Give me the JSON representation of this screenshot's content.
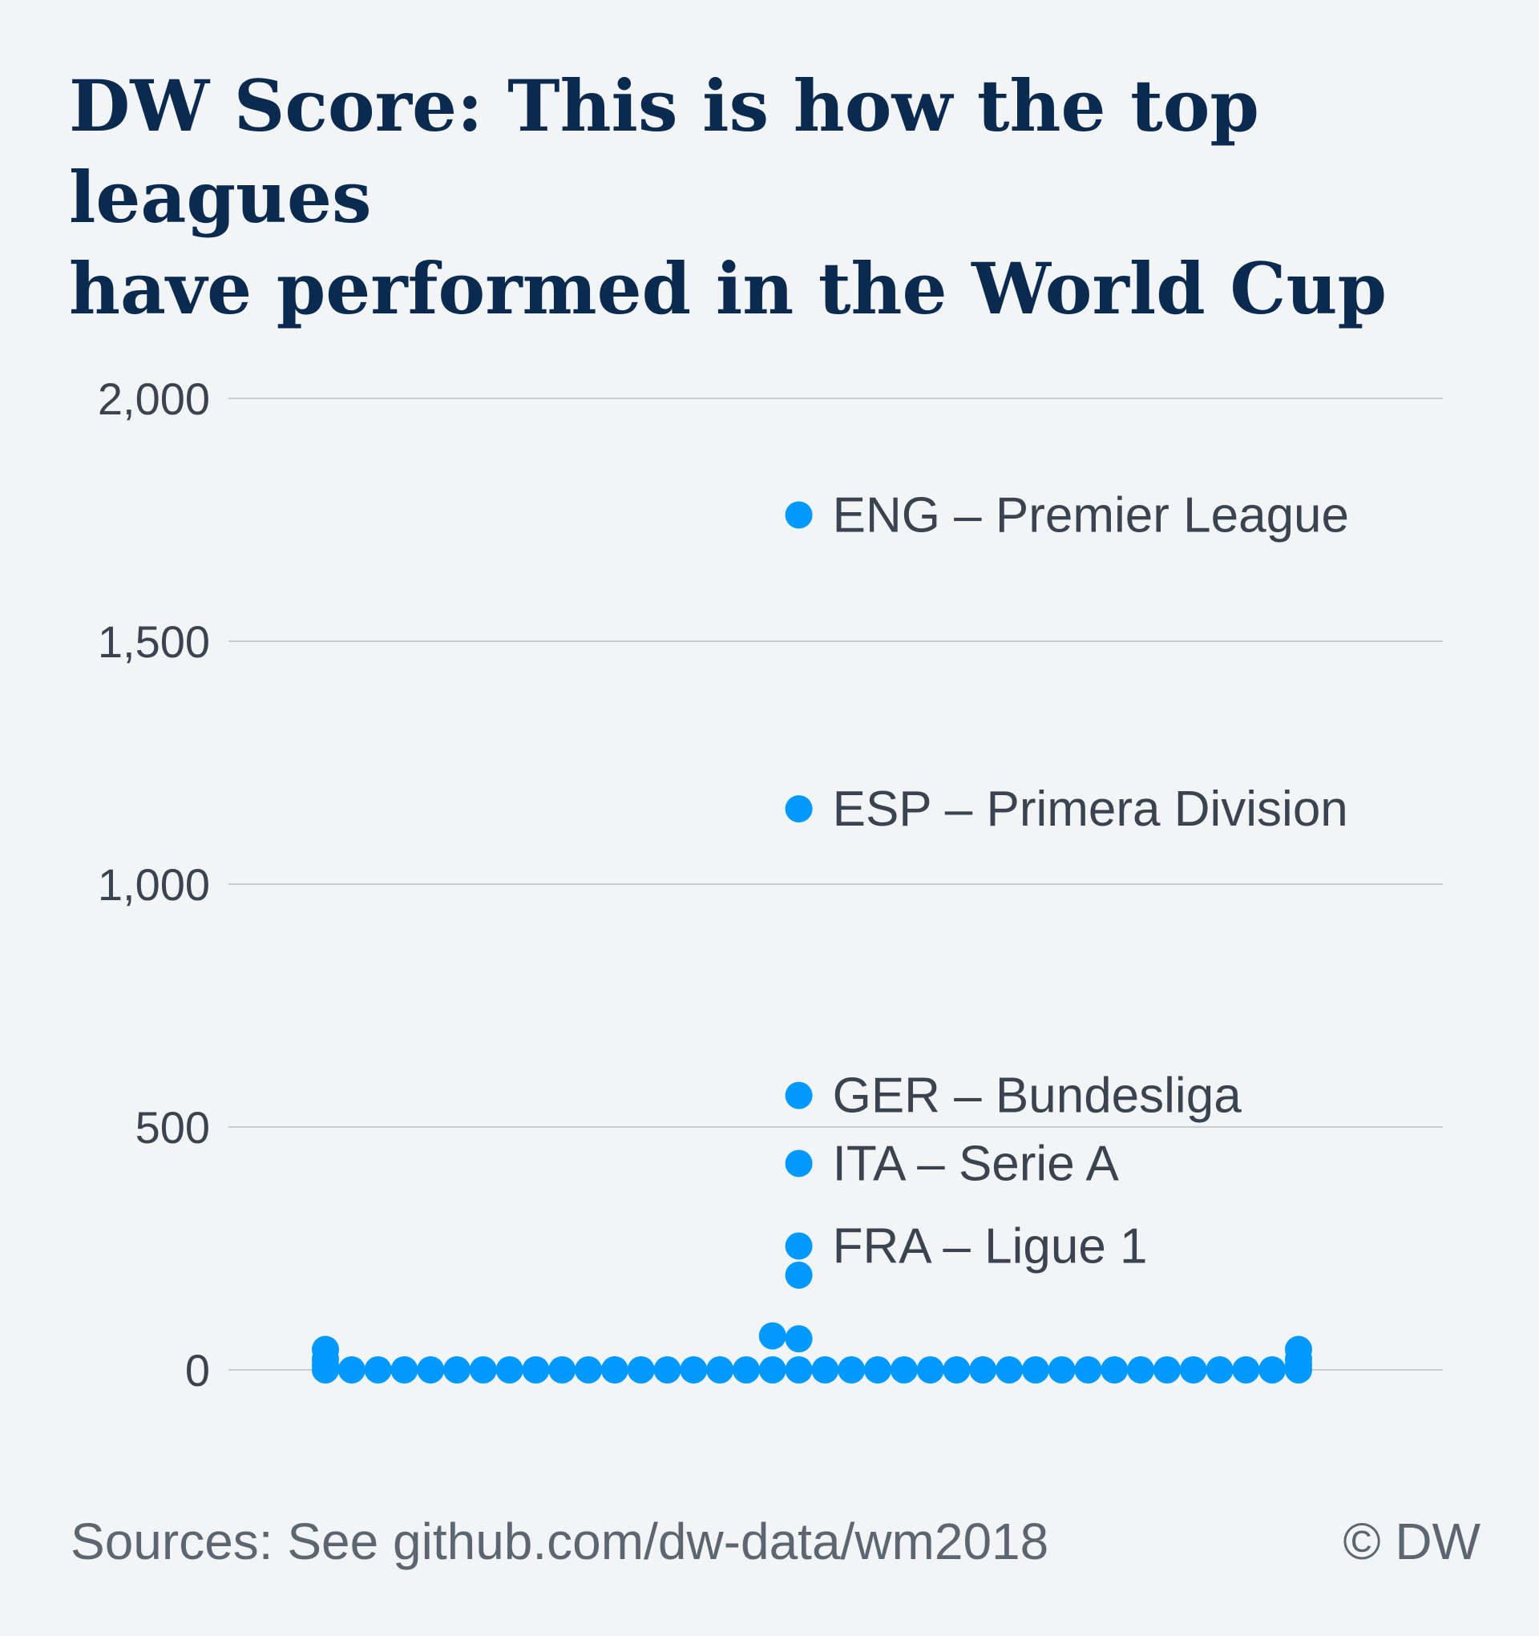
{
  "title_lines": [
    "DW Score: This is how the top leagues",
    "have performed in the World Cup"
  ],
  "source": "Sources: See github.com/dw-data/wm2018",
  "credit": "© DW",
  "colors": {
    "dot": "#0099ff",
    "grid": "#c8ccd1",
    "title": "#0b2a4f",
    "text": "#3a4450"
  },
  "chart_data": {
    "type": "scatter",
    "title": "DW Score: This is how the top leagues have performed in the World Cup",
    "xlabel": "",
    "ylabel": "",
    "ylim": [
      0,
      2000
    ],
    "yticks": [
      0,
      500,
      1000,
      1500,
      2000
    ],
    "ytick_labels": [
      "0",
      "500",
      "1,000",
      "1,500",
      "2,000"
    ],
    "grid": true,
    "x_range": [
      1,
      38
    ],
    "points": [
      {
        "x": 1,
        "y": 0
      },
      {
        "x": 1,
        "y": 10
      },
      {
        "x": 1,
        "y": 22
      },
      {
        "x": 1,
        "y": 42
      },
      {
        "x": 2,
        "y": 0
      },
      {
        "x": 3,
        "y": 0
      },
      {
        "x": 4,
        "y": 0
      },
      {
        "x": 5,
        "y": 0
      },
      {
        "x": 6,
        "y": 0
      },
      {
        "x": 7,
        "y": 0
      },
      {
        "x": 8,
        "y": 0
      },
      {
        "x": 9,
        "y": 0
      },
      {
        "x": 10,
        "y": 0
      },
      {
        "x": 11,
        "y": 0
      },
      {
        "x": 12,
        "y": 0
      },
      {
        "x": 13,
        "y": 0
      },
      {
        "x": 14,
        "y": 0
      },
      {
        "x": 15,
        "y": 0
      },
      {
        "x": 16,
        "y": 0
      },
      {
        "x": 17,
        "y": 0
      },
      {
        "x": 18,
        "y": 0
      },
      {
        "x": 18,
        "y": 70
      },
      {
        "x": 19,
        "y": 0
      },
      {
        "x": 19,
        "y": 64
      },
      {
        "x": 19,
        "y": 195
      },
      {
        "x": 19,
        "y": 255
      },
      {
        "x": 19,
        "y": 425
      },
      {
        "x": 19,
        "y": 565
      },
      {
        "x": 19,
        "y": 1155
      },
      {
        "x": 19,
        "y": 1760
      },
      {
        "x": 20,
        "y": 0
      },
      {
        "x": 21,
        "y": 0
      },
      {
        "x": 22,
        "y": 0
      },
      {
        "x": 23,
        "y": 0
      },
      {
        "x": 24,
        "y": 0
      },
      {
        "x": 25,
        "y": 0
      },
      {
        "x": 26,
        "y": 0
      },
      {
        "x": 27,
        "y": 0
      },
      {
        "x": 28,
        "y": 0
      },
      {
        "x": 29,
        "y": 0
      },
      {
        "x": 30,
        "y": 0
      },
      {
        "x": 31,
        "y": 0
      },
      {
        "x": 32,
        "y": 0
      },
      {
        "x": 33,
        "y": 0
      },
      {
        "x": 34,
        "y": 0
      },
      {
        "x": 35,
        "y": 0
      },
      {
        "x": 36,
        "y": 0
      },
      {
        "x": 37,
        "y": 0
      },
      {
        "x": 38,
        "y": 0
      },
      {
        "x": 38,
        "y": 10
      },
      {
        "x": 38,
        "y": 22
      },
      {
        "x": 38,
        "y": 42
      }
    ],
    "annotations": [
      {
        "text": "ENG – Premier League",
        "x": 19,
        "y": 1760
      },
      {
        "text": "ESP – Primera Division",
        "x": 19,
        "y": 1155
      },
      {
        "text": "GER – Bundesliga",
        "x": 19,
        "y": 565
      },
      {
        "text": "ITA – Serie A",
        "x": 19,
        "y": 425
      },
      {
        "text": "FRA – Ligue 1",
        "x": 19,
        "y": 255
      }
    ]
  }
}
